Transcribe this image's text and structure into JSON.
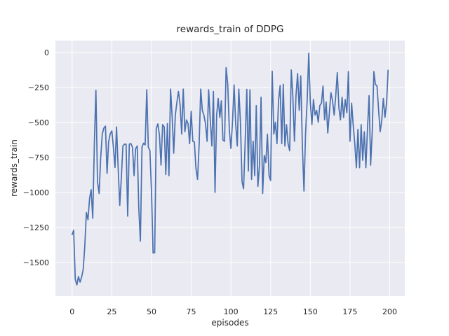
{
  "chart_data": {
    "type": "line",
    "title": "rewards_train of DDPG",
    "xlabel": "episodes",
    "ylabel": "rewards_train",
    "legend": "none",
    "grid": true,
    "style": "seaborn-darkgrid",
    "axes_background": "#eaeaf2",
    "figure_background": "#ffffff",
    "grid_color": "#ffffff",
    "text_color": "#262626",
    "xticks": [
      0,
      25,
      50,
      75,
      100,
      125,
      150,
      175,
      200
    ],
    "yticks": [
      0,
      -250,
      -500,
      -750,
      -1000,
      -1250,
      -1500
    ],
    "xlim": [
      -10.5,
      209.5
    ],
    "ylim": [
      -1740,
      85
    ],
    "x_range": [
      0,
      199
    ],
    "series": [
      {
        "name": "rewards_train",
        "color": "#4c72b0",
        "x_start": 0,
        "x_step": 1,
        "values": [
          -1300,
          -1270,
          -1620,
          -1660,
          -1600,
          -1640,
          -1605,
          -1550,
          -1380,
          -1143,
          -1194,
          -1041,
          -980,
          -1184,
          -650,
          -270,
          -924,
          -1007,
          -753,
          -583,
          -540,
          -526,
          -863,
          -640,
          -580,
          -560,
          -676,
          -821,
          -532,
          -821,
          -1092,
          -900,
          -668,
          -655,
          -655,
          -1169,
          -655,
          -650,
          -676,
          -880,
          -687,
          -668,
          -1109,
          -1347,
          -676,
          -648,
          -660,
          -266,
          -676,
          -700,
          -1000,
          -1432,
          -1430,
          -545,
          -510,
          -592,
          -804,
          -515,
          -532,
          -872,
          -507,
          -880,
          -261,
          -460,
          -719,
          -447,
          -354,
          -278,
          -374,
          -583,
          -261,
          -566,
          -481,
          -507,
          -651,
          -420,
          -634,
          -640,
          -829,
          -906,
          -651,
          -261,
          -413,
          -447,
          -507,
          -634,
          -266,
          -481,
          -668,
          -278,
          -999,
          -447,
          -328,
          -464,
          -345,
          -626,
          -634,
          -108,
          -227,
          -549,
          -685,
          -498,
          -232,
          -507,
          -668,
          -261,
          -498,
          -922,
          -973,
          -634,
          -263,
          -846,
          -266,
          -906,
          -634,
          -880,
          -379,
          -957,
          -804,
          -320,
          -1007,
          -735,
          -787,
          -583,
          -880,
          -914,
          -133,
          -583,
          -498,
          -651,
          -345,
          -236,
          -651,
          -227,
          -668,
          -515,
          -651,
          -702,
          -125,
          -312,
          -634,
          -308,
          -150,
          -413,
          -167,
          -668,
          -990,
          -583,
          -345,
          -5,
          -354,
          -515,
          -336,
          -447,
          -413,
          -498,
          -379,
          -362,
          -240,
          -481,
          -354,
          -575,
          -430,
          -287,
          -345,
          -447,
          -312,
          -144,
          -397,
          -481,
          -320,
          -464,
          -336,
          -430,
          -136,
          -634,
          -362,
          -515,
          -651,
          -823,
          -549,
          -823,
          -515,
          -770,
          -566,
          -823,
          -549,
          -308,
          -805,
          -566,
          -136,
          -227,
          -240,
          -414,
          -566,
          -481,
          -328,
          -464,
          -362,
          -127
        ]
      }
    ]
  }
}
